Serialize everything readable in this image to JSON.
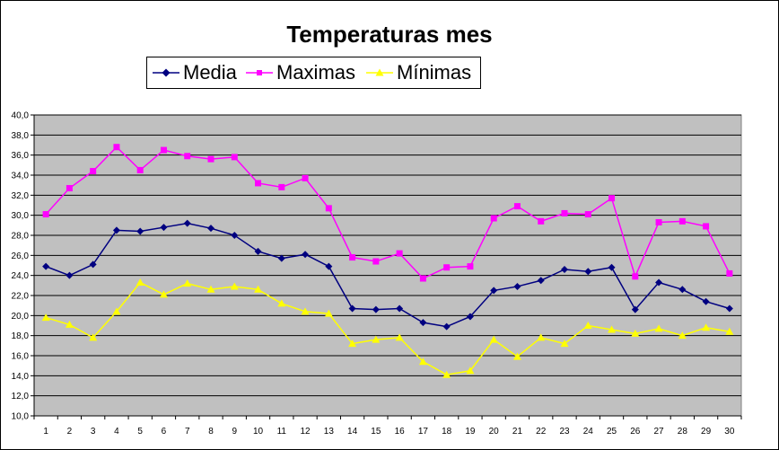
{
  "chart_data": {
    "type": "line",
    "title": "Temperaturas mes",
    "xlabel": "",
    "ylabel": "",
    "categories": [
      "1",
      "2",
      "3",
      "4",
      "5",
      "6",
      "7",
      "8",
      "9",
      "10",
      "11",
      "12",
      "13",
      "14",
      "15",
      "16",
      "17",
      "18",
      "19",
      "20",
      "21",
      "22",
      "23",
      "24",
      "25",
      "26",
      "27",
      "28",
      "29",
      "30"
    ],
    "ylim": [
      10.0,
      40.0
    ],
    "yticks": [
      "10,0",
      "12,0",
      "14,0",
      "16,0",
      "18,0",
      "20,0",
      "22,0",
      "24,0",
      "26,0",
      "28,0",
      "30,0",
      "32,0",
      "34,0",
      "36,0",
      "38,0",
      "40,0"
    ],
    "grid": true,
    "legend_position": "top",
    "plot_background": "#c0c0c0",
    "series": [
      {
        "name": "Media",
        "color": "#000080",
        "marker": "diamond",
        "values": [
          24.9,
          24.0,
          25.1,
          28.5,
          28.4,
          28.8,
          29.2,
          28.7,
          28.0,
          26.4,
          25.7,
          26.1,
          24.9,
          20.7,
          20.6,
          20.7,
          19.3,
          18.9,
          19.9,
          22.5,
          22.9,
          23.5,
          24.6,
          24.4,
          24.8,
          20.6,
          23.3,
          22.6,
          21.4,
          20.7
        ]
      },
      {
        "name": "Maximas",
        "color": "#ff00ff",
        "marker": "square",
        "values": [
          30.1,
          32.7,
          34.4,
          36.8,
          34.5,
          36.5,
          35.9,
          35.6,
          35.8,
          33.2,
          32.8,
          33.7,
          30.7,
          25.8,
          25.4,
          26.2,
          23.7,
          24.8,
          24.9,
          29.7,
          30.9,
          29.4,
          30.2,
          30.1,
          31.7,
          23.9,
          29.3,
          29.4,
          28.9,
          24.2
        ]
      },
      {
        "name": "Mínimas",
        "color": "#ffff00",
        "marker": "triangle",
        "values": [
          19.8,
          19.1,
          17.8,
          20.4,
          23.3,
          22.1,
          23.2,
          22.6,
          22.9,
          22.6,
          21.2,
          20.4,
          20.2,
          17.2,
          17.6,
          17.8,
          15.4,
          14.1,
          14.5,
          17.6,
          15.9,
          17.8,
          17.2,
          19.0,
          18.6,
          18.2,
          18.7,
          18.0,
          18.8,
          18.4
        ]
      }
    ]
  }
}
